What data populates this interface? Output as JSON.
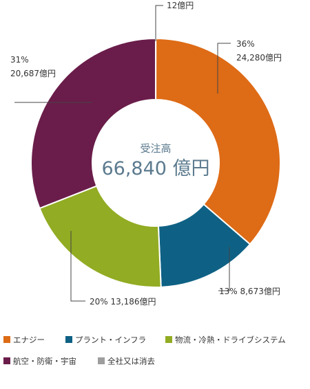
{
  "chart_data": {
    "type": "pie",
    "center": {
      "title": "受注高",
      "value": "66,840 億円"
    },
    "slices": [
      {
        "name": "全社又は消去",
        "value": 12,
        "percent_label": "",
        "value_label": "12億円",
        "color": "#9e9e9e"
      },
      {
        "name": "エナジー",
        "value": 24280,
        "percent_label": "36%",
        "value_label": "24,280億円",
        "color": "#de6b16"
      },
      {
        "name": "プラント・インフラ",
        "value": 8673,
        "percent_label": "13%",
        "value_label": "8,673億円",
        "color": "#0e6184"
      },
      {
        "name": "物流・冷熱・ドライブシステム",
        "value": 13186,
        "percent_label": "20%",
        "value_label": "13,186億円",
        "color": "#92ac23"
      },
      {
        "name": "航空・防衛・宇宙",
        "value": 20687,
        "percent_label": "31%",
        "value_label": "20,687億円",
        "color": "#6a1d4a"
      }
    ],
    "legend": [
      "エナジー",
      "プラント・インフラ",
      "物流・冷熱・ドライブシステム",
      "航空・防衛・宇宙",
      "全社又は消去"
    ]
  }
}
